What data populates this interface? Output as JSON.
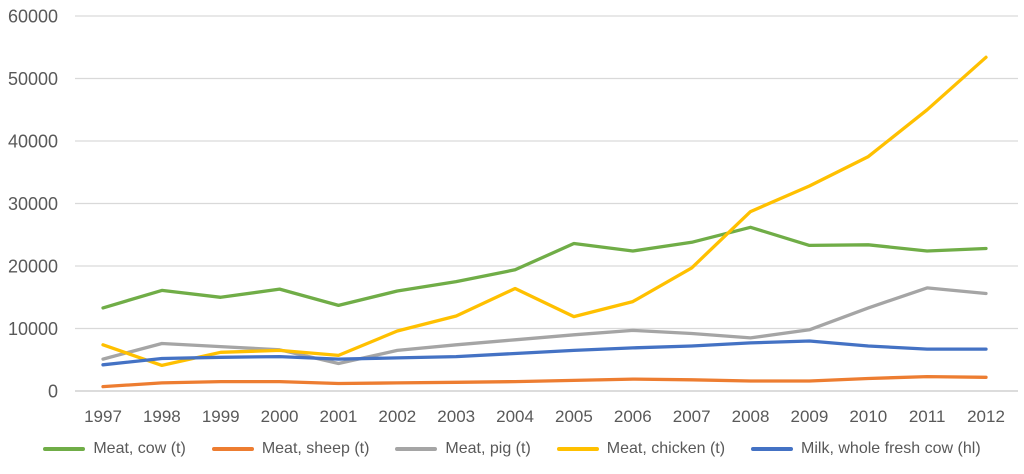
{
  "chart_data": {
    "type": "line",
    "title": "",
    "xlabel": "",
    "ylabel": "",
    "x": [
      "1997",
      "1998",
      "1999",
      "2000",
      "2001",
      "2002",
      "2003",
      "2004",
      "2005",
      "2006",
      "2007",
      "2008",
      "2009",
      "2010",
      "2011",
      "2012"
    ],
    "series": [
      {
        "name": "Meat, cow (t)",
        "color": "#70AD47",
        "values": [
          13300,
          16100,
          15000,
          16300,
          13700,
          16000,
          17500,
          19400,
          23600,
          22400,
          23800,
          26200,
          23300,
          23400,
          22400,
          22800
        ]
      },
      {
        "name": "Meat, sheep (t)",
        "color": "#ED7D31",
        "values": [
          700,
          1300,
          1500,
          1500,
          1200,
          1300,
          1400,
          1500,
          1700,
          1900,
          1800,
          1600,
          1600,
          2000,
          2300,
          2200
        ]
      },
      {
        "name": "Meat, pig (t)",
        "color": "#A5A5A5",
        "values": [
          5100,
          7600,
          7100,
          6600,
          4400,
          6500,
          7400,
          8200,
          9000,
          9700,
          9200,
          8500,
          9800,
          13300,
          16500,
          15600
        ]
      },
      {
        "name": "Meat, chicken (t)",
        "color": "#FFC000",
        "values": [
          7400,
          4100,
          6200,
          6500,
          5700,
          9600,
          12000,
          16400,
          11900,
          14300,
          19700,
          28700,
          32800,
          37500,
          45000,
          53400
        ]
      },
      {
        "name": "Milk, whole fresh cow (hl)",
        "color": "#4472C4",
        "values": [
          4200,
          5200,
          5400,
          5500,
          5100,
          5300,
          5500,
          6000,
          6500,
          6900,
          7200,
          7700,
          8000,
          7200,
          6700,
          6700
        ]
      }
    ],
    "ylim": [
      0,
      60000
    ],
    "yticks": [
      0,
      10000,
      20000,
      30000,
      40000,
      50000,
      60000
    ],
    "ytick_labels": [
      "0",
      "10000",
      "20000",
      "30000",
      "40000",
      "50000",
      "60000"
    ],
    "grid": "horizontal",
    "legend_position": "bottom",
    "gridline_color": "#D9D9D9",
    "axis_line_color": "#D0D0D0",
    "tick_label_color": "#595959"
  }
}
